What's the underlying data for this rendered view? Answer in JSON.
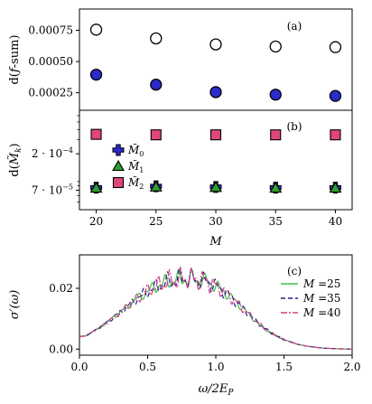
{
  "chart_data": [
    {
      "panel": "(a)",
      "type": "scatter",
      "ylabel": "d(f-sum)",
      "ylabel_parts": {
        "pre": "d(",
        "var": "f",
        "post": "-sum)"
      },
      "xlim": [
        18.6,
        41.4
      ],
      "ylim": [
        0.00011,
        0.00092
      ],
      "yticks": [
        0.00025,
        0.0005,
        0.00075
      ],
      "yticklabels": [
        "0.00025",
        "0.00050",
        "0.00075"
      ],
      "grid": false,
      "series": [
        {
          "marker": "circle-open",
          "color": "#ffffff",
          "x": [
            20,
            25,
            30,
            35,
            40
          ],
          "y": [
            0.000755,
            0.000685,
            0.000637,
            0.00062,
            0.000615
          ]
        },
        {
          "marker": "circle-filled",
          "color": "#2b2bcc",
          "x": [
            20,
            25,
            30,
            35,
            40
          ],
          "y": [
            0.000395,
            0.000315,
            0.000255,
            0.000235,
            0.000225
          ]
        }
      ]
    },
    {
      "panel": "(b)",
      "type": "scatter",
      "ylabel": "d(M̃k)",
      "xlabel": "M",
      "xlim": [
        18.6,
        41.4
      ],
      "ylim": [
        4e-05,
        0.0007
      ],
      "yscale": "log",
      "xticks": [
        20,
        25,
        30,
        35,
        40
      ],
      "xticklabels": [
        "20",
        "25",
        "30",
        "35",
        "40"
      ],
      "yticks": [
        7e-05,
        0.0002
      ],
      "yticklabels": [
        "7 · 10",
        "2 · 10"
      ],
      "ytick_exponents": [
        "−5",
        "−4"
      ],
      "legend_position": "center-left",
      "grid": false,
      "series": [
        {
          "name": "M̃0",
          "name_base": "M̃",
          "name_sub": "0",
          "marker": "plus",
          "color": "#2b2bcc",
          "x": [
            20,
            25,
            30,
            35,
            40
          ],
          "y": [
            7.55e-05,
            7.85e-05,
            7.7e-05,
            7.55e-05,
            7.55e-05
          ]
        },
        {
          "name": "M̃1",
          "name_base": "M̃",
          "name_sub": "1",
          "marker": "triangle",
          "color": "#2e9e2e",
          "x": [
            20,
            25,
            30,
            35,
            40
          ],
          "y": [
            7.45e-05,
            7.7e-05,
            7.6e-05,
            7.45e-05,
            7.45e-05
          ]
        },
        {
          "name": "M̃2",
          "name_base": "M̃",
          "name_sub": "2",
          "marker": "square",
          "color": "#e0467a",
          "x": [
            20,
            25,
            30,
            35,
            40
          ],
          "y": [
            0.00035,
            0.000345,
            0.000345,
            0.000345,
            0.000345
          ]
        }
      ]
    },
    {
      "panel": "(c)",
      "type": "line",
      "ylabel": "σ′(ω)",
      "xlabel": "ω/2E_P",
      "xlabel_parts": {
        "var": "ω/2E",
        "sub": "P"
      },
      "xlim": [
        0,
        2
      ],
      "ylim": [
        -0.002,
        0.031
      ],
      "xticks": [
        0,
        0.5,
        1,
        1.5,
        2
      ],
      "xticklabels": [
        "0.0",
        "0.5",
        "1.0",
        "1.5",
        "2.0"
      ],
      "yticks": [
        0,
        0.02
      ],
      "yticklabels": [
        "0.00",
        "0.02"
      ],
      "legend_position": "top-right",
      "grid": false,
      "x": [
        0,
        0.05,
        0.1,
        0.15,
        0.2,
        0.25,
        0.3,
        0.35,
        0.4,
        0.45,
        0.5,
        0.55,
        0.6,
        0.65,
        0.7,
        0.75,
        0.8,
        0.85,
        0.9,
        0.95,
        1.0,
        1.05,
        1.1,
        1.15,
        1.2,
        1.25,
        1.3,
        1.35,
        1.4,
        1.45,
        1.5,
        1.55,
        1.6,
        1.65,
        1.7,
        1.75,
        1.8,
        1.85,
        1.9,
        1.95,
        2.0
      ],
      "series": [
        {
          "name": "M =25",
          "name_var": "M",
          "name_value": "=25",
          "color": "#44c244",
          "dash": "solid",
          "osc_amp": 0.0032,
          "osc_freq": 10.0,
          "y": [
            0.004,
            0.0045,
            0.0058,
            0.0072,
            0.0088,
            0.0105,
            0.0122,
            0.014,
            0.0158,
            0.0175,
            0.019,
            0.0203,
            0.0214,
            0.0222,
            0.0228,
            0.0231,
            0.0232,
            0.023,
            0.0226,
            0.0219,
            0.0208,
            0.0193,
            0.0175,
            0.0155,
            0.0133,
            0.0111,
            0.009,
            0.0071,
            0.0055,
            0.0042,
            0.0031,
            0.0023,
            0.0016,
            0.0011,
            0.0008,
            0.0005,
            0.0003,
            0.0002,
            0.0001,
            5e-05,
            0.0
          ]
        },
        {
          "name": "M =35",
          "name_var": "M",
          "name_value": "=35",
          "color": "#1f1f8f",
          "dash": "5,3",
          "osc_amp": 0.0036,
          "osc_freq": 11.0,
          "y": [
            0.004,
            0.0045,
            0.0058,
            0.0072,
            0.0088,
            0.0105,
            0.0122,
            0.014,
            0.0158,
            0.0175,
            0.019,
            0.0203,
            0.0214,
            0.0222,
            0.0228,
            0.0231,
            0.0232,
            0.023,
            0.0226,
            0.0219,
            0.0208,
            0.0193,
            0.0175,
            0.0155,
            0.0133,
            0.0111,
            0.009,
            0.0071,
            0.0055,
            0.0042,
            0.0031,
            0.0023,
            0.0016,
            0.0011,
            0.0008,
            0.0005,
            0.0003,
            0.0002,
            0.0001,
            5e-05,
            0.0
          ]
        },
        {
          "name": "M =40",
          "name_var": "M",
          "name_value": "=40",
          "color": "#d63c86",
          "dash": "7,2,2,2",
          "osc_amp": 0.004,
          "osc_freq": 12.0,
          "y": [
            0.004,
            0.0045,
            0.0058,
            0.0072,
            0.0088,
            0.0105,
            0.0122,
            0.014,
            0.0158,
            0.0175,
            0.019,
            0.0203,
            0.0214,
            0.0222,
            0.0228,
            0.0231,
            0.0232,
            0.023,
            0.0226,
            0.0219,
            0.0208,
            0.0193,
            0.0175,
            0.0155,
            0.0133,
            0.0111,
            0.009,
            0.0071,
            0.0055,
            0.0042,
            0.0031,
            0.0023,
            0.0016,
            0.0011,
            0.0008,
            0.0005,
            0.0003,
            0.0002,
            0.0001,
            5e-05,
            0.0
          ]
        }
      ]
    }
  ]
}
